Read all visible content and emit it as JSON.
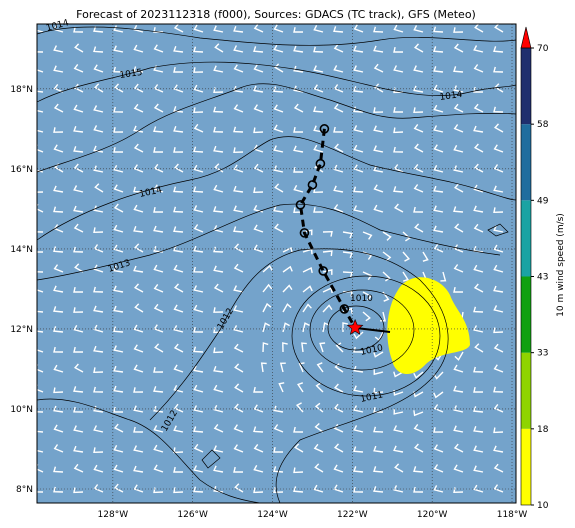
{
  "map": {
    "title": "Forecast of 2023112318 (f000), Sources: GDACS (TC track), GFS (Meteo)",
    "lon_lim": [
      -129.9,
      -117.9
    ],
    "lat_lim": [
      7.65,
      19.62
    ],
    "lon_ticks": [
      {
        "value": -128,
        "label": "128°W"
      },
      {
        "value": -126,
        "label": "126°W"
      },
      {
        "value": -124,
        "label": "124°W"
      },
      {
        "value": -122,
        "label": "122°W"
      },
      {
        "value": -120,
        "label": "120°W"
      },
      {
        "value": -118,
        "label": "118°W"
      }
    ],
    "lat_ticks": [
      {
        "value": 8,
        "label": "8°N"
      },
      {
        "value": 10,
        "label": "10°N"
      },
      {
        "value": 12,
        "label": "12°N"
      },
      {
        "value": 14,
        "label": "14°N"
      },
      {
        "value": 16,
        "label": "16°N"
      },
      {
        "value": 18,
        "label": "18°N"
      }
    ],
    "contour_labels": [
      "1014",
      "1015",
      "1014",
      "1014",
      "1013",
      "1012",
      "1010",
      "1010",
      "1011",
      "1012"
    ],
    "track": {
      "lon": [
        -122.7,
        -122.8,
        -123.0,
        -123.3,
        -123.2,
        -122.73,
        -122.2
      ],
      "lat": [
        17.0,
        16.13,
        15.6,
        15.1,
        14.4,
        13.45,
        12.5
      ]
    },
    "current_position": {
      "lon": -121.93,
      "lat": 12.03
    },
    "colorbar": {
      "label": "10 m wind speed (m/s)",
      "ticks": [
        10,
        18,
        33,
        43,
        49,
        58,
        70
      ],
      "colors": [
        "#ffff00",
        "#8fd400",
        "#10a010",
        "#1aa3a3",
        "#1f6d9e",
        "#1f2f6e"
      ],
      "extend_color": "#ff0000"
    }
  }
}
